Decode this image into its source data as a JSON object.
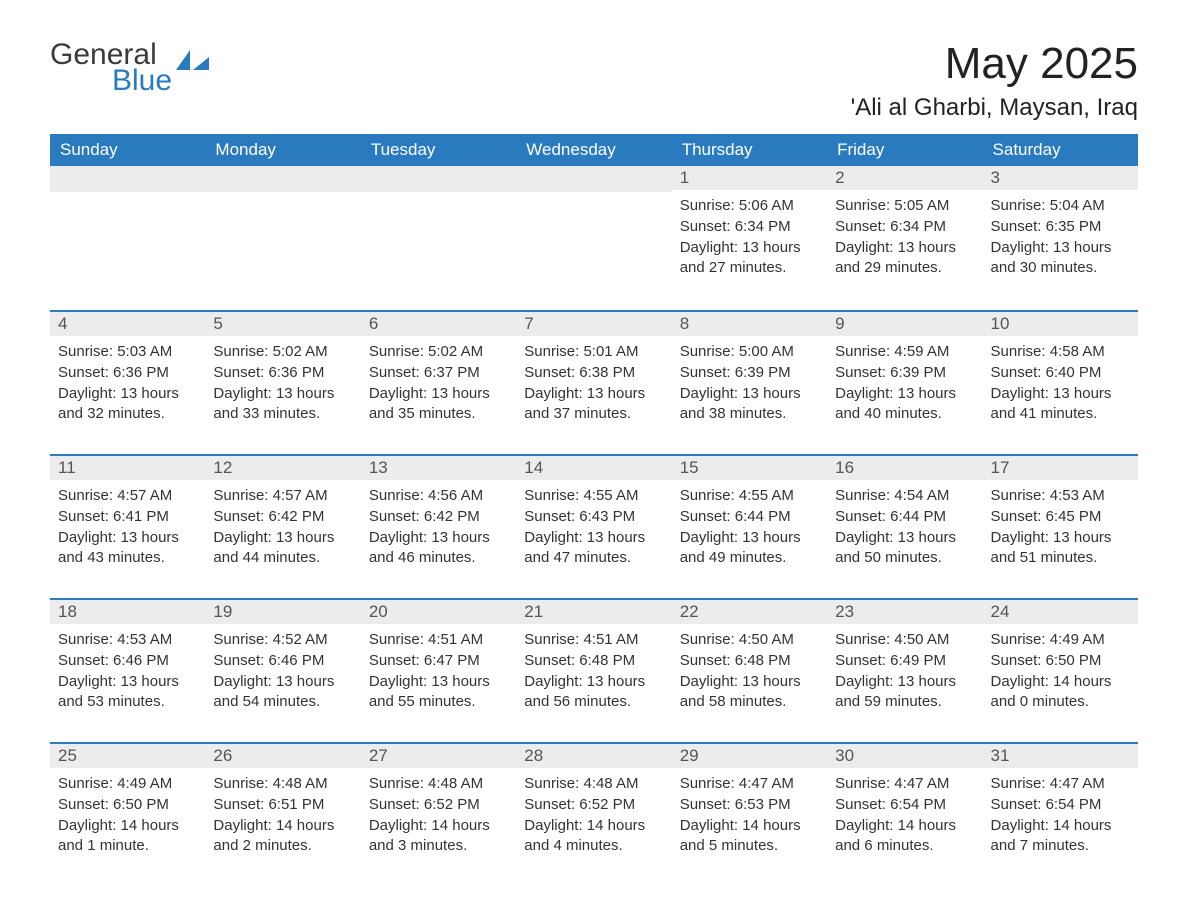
{
  "logo": {
    "general": "General",
    "blue": "Blue",
    "accent_color": "#2a7abf"
  },
  "title": {
    "month": "May 2025",
    "location": "'Ali al Gharbi, Maysan, Iraq"
  },
  "colors": {
    "header_bg": "#2a7abf",
    "header_text": "#ffffff",
    "daynum_bg": "#ececec",
    "daynum_text": "#555555",
    "row_border": "#2a7abf",
    "body_text": "#333333"
  },
  "weekdays": [
    "Sunday",
    "Monday",
    "Tuesday",
    "Wednesday",
    "Thursday",
    "Friday",
    "Saturday"
  ],
  "labels": {
    "sunrise": "Sunrise:",
    "sunset": "Sunset:",
    "daylight": "Daylight:"
  },
  "weeks": [
    [
      {
        "empty": true
      },
      {
        "empty": true
      },
      {
        "empty": true
      },
      {
        "empty": true
      },
      {
        "n": "1",
        "sunrise": "5:06 AM",
        "sunset": "6:34 PM",
        "daylight": "13 hours and 27 minutes."
      },
      {
        "n": "2",
        "sunrise": "5:05 AM",
        "sunset": "6:34 PM",
        "daylight": "13 hours and 29 minutes."
      },
      {
        "n": "3",
        "sunrise": "5:04 AM",
        "sunset": "6:35 PM",
        "daylight": "13 hours and 30 minutes."
      }
    ],
    [
      {
        "n": "4",
        "sunrise": "5:03 AM",
        "sunset": "6:36 PM",
        "daylight": "13 hours and 32 minutes."
      },
      {
        "n": "5",
        "sunrise": "5:02 AM",
        "sunset": "6:36 PM",
        "daylight": "13 hours and 33 minutes."
      },
      {
        "n": "6",
        "sunrise": "5:02 AM",
        "sunset": "6:37 PM",
        "daylight": "13 hours and 35 minutes."
      },
      {
        "n": "7",
        "sunrise": "5:01 AM",
        "sunset": "6:38 PM",
        "daylight": "13 hours and 37 minutes."
      },
      {
        "n": "8",
        "sunrise": "5:00 AM",
        "sunset": "6:39 PM",
        "daylight": "13 hours and 38 minutes."
      },
      {
        "n": "9",
        "sunrise": "4:59 AM",
        "sunset": "6:39 PM",
        "daylight": "13 hours and 40 minutes."
      },
      {
        "n": "10",
        "sunrise": "4:58 AM",
        "sunset": "6:40 PM",
        "daylight": "13 hours and 41 minutes."
      }
    ],
    [
      {
        "n": "11",
        "sunrise": "4:57 AM",
        "sunset": "6:41 PM",
        "daylight": "13 hours and 43 minutes."
      },
      {
        "n": "12",
        "sunrise": "4:57 AM",
        "sunset": "6:42 PM",
        "daylight": "13 hours and 44 minutes."
      },
      {
        "n": "13",
        "sunrise": "4:56 AM",
        "sunset": "6:42 PM",
        "daylight": "13 hours and 46 minutes."
      },
      {
        "n": "14",
        "sunrise": "4:55 AM",
        "sunset": "6:43 PM",
        "daylight": "13 hours and 47 minutes."
      },
      {
        "n": "15",
        "sunrise": "4:55 AM",
        "sunset": "6:44 PM",
        "daylight": "13 hours and 49 minutes."
      },
      {
        "n": "16",
        "sunrise": "4:54 AM",
        "sunset": "6:44 PM",
        "daylight": "13 hours and 50 minutes."
      },
      {
        "n": "17",
        "sunrise": "4:53 AM",
        "sunset": "6:45 PM",
        "daylight": "13 hours and 51 minutes."
      }
    ],
    [
      {
        "n": "18",
        "sunrise": "4:53 AM",
        "sunset": "6:46 PM",
        "daylight": "13 hours and 53 minutes."
      },
      {
        "n": "19",
        "sunrise": "4:52 AM",
        "sunset": "6:46 PM",
        "daylight": "13 hours and 54 minutes."
      },
      {
        "n": "20",
        "sunrise": "4:51 AM",
        "sunset": "6:47 PM",
        "daylight": "13 hours and 55 minutes."
      },
      {
        "n": "21",
        "sunrise": "4:51 AM",
        "sunset": "6:48 PM",
        "daylight": "13 hours and 56 minutes."
      },
      {
        "n": "22",
        "sunrise": "4:50 AM",
        "sunset": "6:48 PM",
        "daylight": "13 hours and 58 minutes."
      },
      {
        "n": "23",
        "sunrise": "4:50 AM",
        "sunset": "6:49 PM",
        "daylight": "13 hours and 59 minutes."
      },
      {
        "n": "24",
        "sunrise": "4:49 AM",
        "sunset": "6:50 PM",
        "daylight": "14 hours and 0 minutes."
      }
    ],
    [
      {
        "n": "25",
        "sunrise": "4:49 AM",
        "sunset": "6:50 PM",
        "daylight": "14 hours and 1 minute."
      },
      {
        "n": "26",
        "sunrise": "4:48 AM",
        "sunset": "6:51 PM",
        "daylight": "14 hours and 2 minutes."
      },
      {
        "n": "27",
        "sunrise": "4:48 AM",
        "sunset": "6:52 PM",
        "daylight": "14 hours and 3 minutes."
      },
      {
        "n": "28",
        "sunrise": "4:48 AM",
        "sunset": "6:52 PM",
        "daylight": "14 hours and 4 minutes."
      },
      {
        "n": "29",
        "sunrise": "4:47 AM",
        "sunset": "6:53 PM",
        "daylight": "14 hours and 5 minutes."
      },
      {
        "n": "30",
        "sunrise": "4:47 AM",
        "sunset": "6:54 PM",
        "daylight": "14 hours and 6 minutes."
      },
      {
        "n": "31",
        "sunrise": "4:47 AM",
        "sunset": "6:54 PM",
        "daylight": "14 hours and 7 minutes."
      }
    ]
  ]
}
